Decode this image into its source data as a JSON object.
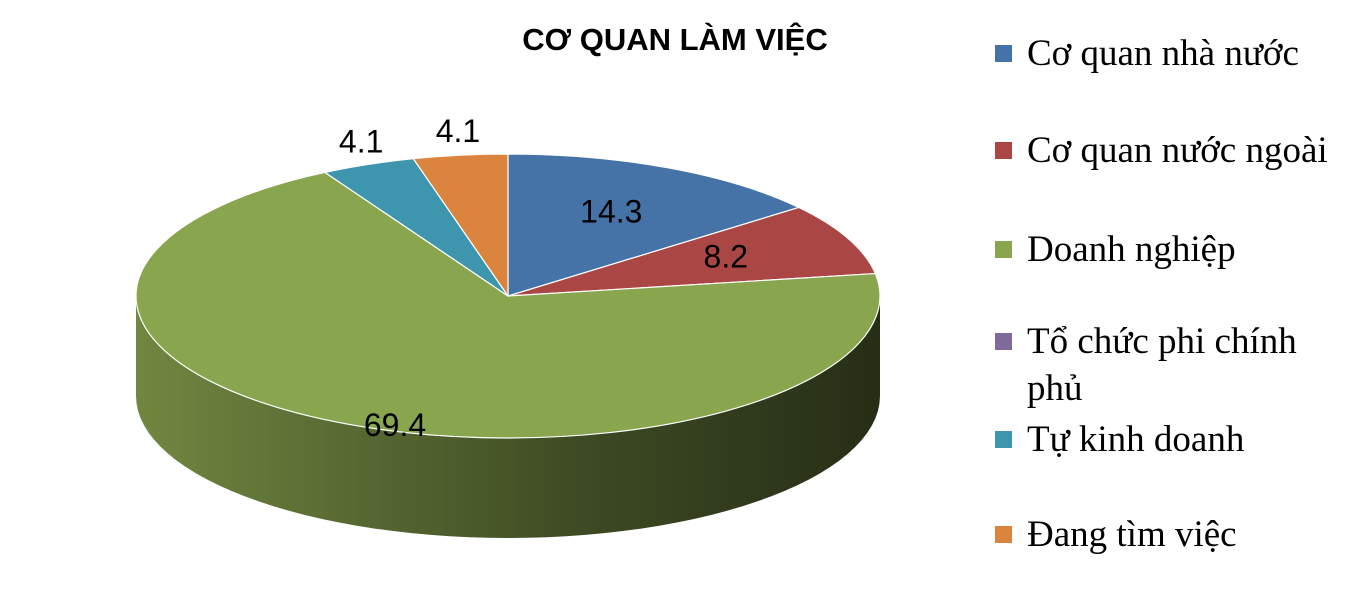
{
  "chart_data": {
    "type": "pie",
    "title": "CƠ QUAN LÀM VIỆC",
    "legend_position": "right",
    "slices": [
      {
        "label": "Cơ quan nhà nước",
        "value": 14.3,
        "value_label": "14.3",
        "color": "#4572A7"
      },
      {
        "label": "Cơ quan nước ngoài",
        "value": 8.2,
        "value_label": "8.2",
        "color": "#AA4643"
      },
      {
        "label": "Doanh nghiệp",
        "value": 69.4,
        "value_label": "69.4",
        "color": "#89A54E"
      },
      {
        "label": "Tổ chức phi chính phủ",
        "value": 0,
        "value_label": "",
        "color": "#80699B"
      },
      {
        "label": "Tự kinh doanh",
        "value": 4.1,
        "value_label": "4.1",
        "color": "#3D96AE"
      },
      {
        "label": "Đang tìm việc",
        "value": 4.1,
        "value_label": "4.1",
        "color": "#DB843D"
      }
    ]
  }
}
